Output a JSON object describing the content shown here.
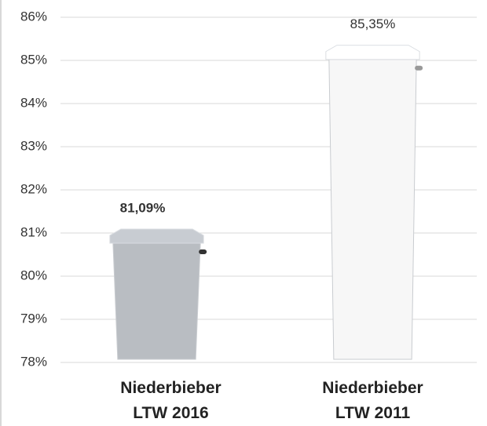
{
  "chart_data": {
    "type": "bar",
    "categories": [
      "Niederbieber LTW 2016",
      "Niederbieber LTW 2011"
    ],
    "values": [
      81.09,
      85.35
    ],
    "value_labels": [
      "81,09%",
      "85,35%"
    ],
    "colors": [
      "#b9bdc2",
      "#f7f7f7"
    ],
    "ylim": [
      78,
      86
    ],
    "yticks": [
      {
        "value": 78,
        "label": "78%"
      },
      {
        "value": 79,
        "label": "79%"
      },
      {
        "value": 80,
        "label": "80%"
      },
      {
        "value": 81,
        "label": "81%"
      },
      {
        "value": 82,
        "label": "82%"
      },
      {
        "value": 83,
        "label": "83%"
      },
      {
        "value": 84,
        "label": "84%"
      },
      {
        "value": 85,
        "label": "85%"
      },
      {
        "value": 86,
        "label": "86%"
      }
    ],
    "grid": true
  }
}
